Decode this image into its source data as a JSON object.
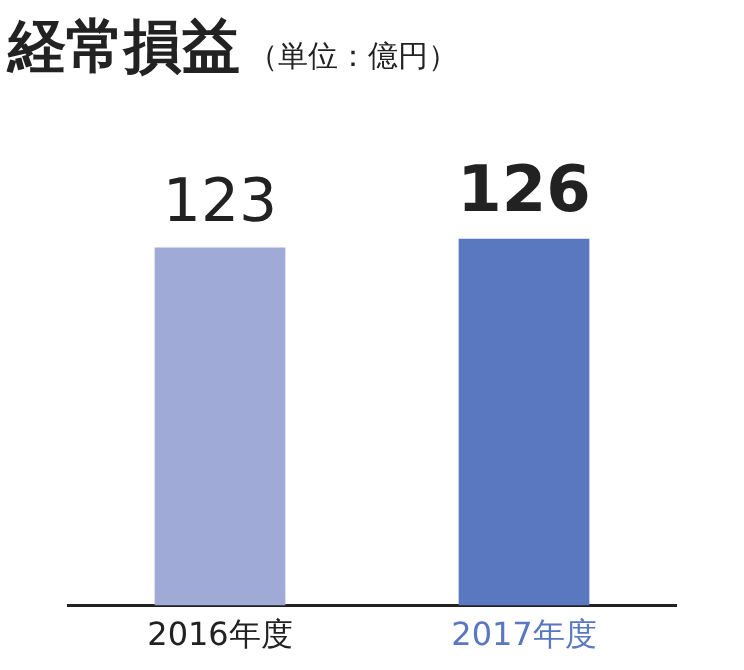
{
  "chart_data": {
    "type": "bar",
    "title": "経常損益",
    "subtitle": "（単位：億円）",
    "categories": [
      "2016年度",
      "2017年度"
    ],
    "values": [
      123,
      126
    ],
    "colors": [
      "#a0aad6",
      "#5a78bf"
    ],
    "data_labels": true,
    "grid": false,
    "legend": false
  }
}
